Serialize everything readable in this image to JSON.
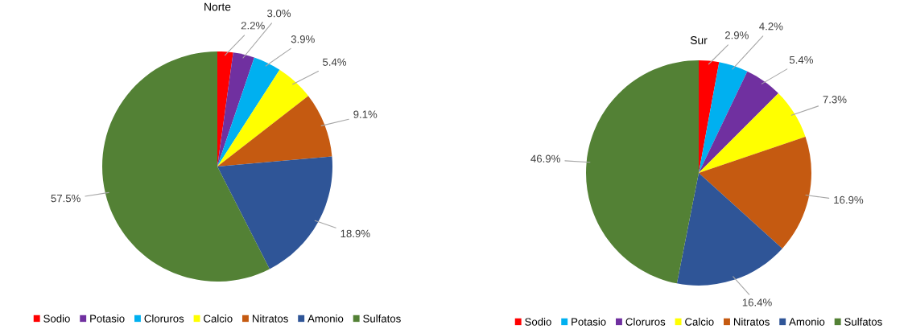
{
  "chart_data": [
    {
      "type": "pie",
      "title": "Norte",
      "categories": [
        "Sodio",
        "Potasio",
        "Cloruros",
        "Calcio",
        "Nitratos",
        "Amonio",
        "Sulfatos"
      ],
      "values": [
        2.2,
        3.0,
        3.9,
        5.4,
        9.1,
        18.9,
        57.5
      ],
      "value_labels": [
        "2.2%",
        "3.0%",
        "3.9%",
        "5.4%",
        "9.1%",
        "18.9%",
        "57.5%"
      ],
      "colors": [
        "#ff0000",
        "#7030a0",
        "#00b0f0",
        "#ffff00",
        "#c55a11",
        "#2f5597",
        "#538135"
      ],
      "legend": "bottom"
    },
    {
      "type": "pie",
      "title": "Sur",
      "categories": [
        "Sodio",
        "Potasio",
        "Cloruros",
        "Calcio",
        "Nitratos",
        "Amonio",
        "Sulfatos"
      ],
      "values": [
        2.9,
        4.2,
        5.4,
        7.3,
        16.9,
        16.4,
        46.9
      ],
      "value_labels": [
        "2.9%",
        "4.2%",
        "5.4%",
        "7.3%",
        "16.9%",
        "16.4%",
        "46.9%"
      ],
      "colors": [
        "#ff0000",
        "#00b0f0",
        "#7030a0",
        "#ffff00",
        "#c55a11",
        "#2f5597",
        "#538135"
      ],
      "legend": "bottom"
    }
  ]
}
